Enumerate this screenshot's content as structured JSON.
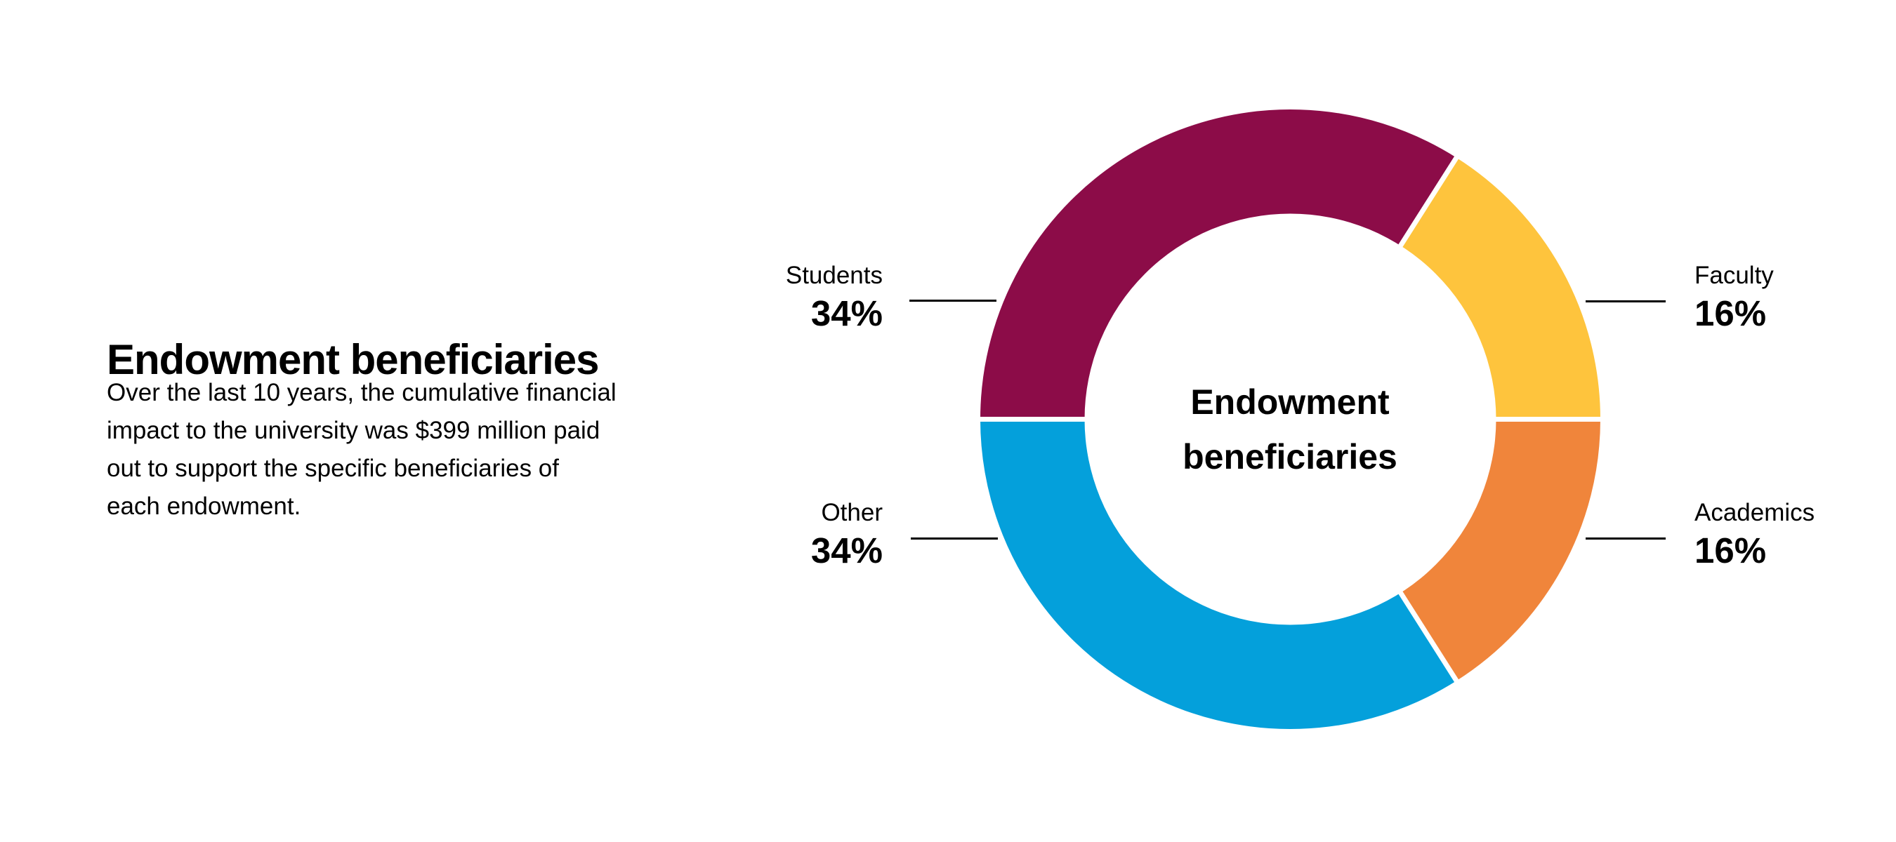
{
  "page": {
    "background_color": "#FFFFFF",
    "text_color": "#000000"
  },
  "text_block": {
    "heading": "Endowment beneficiaries",
    "paragraph": "Over the last 10 years, the cumulative financial impact to the university was $399 million paid out to support the specific beneficiaries of each endowment.",
    "paragraph_lines": [
      "Over the last 10 years, the cumulative financial",
      "impact to the university was $399 million paid",
      "out to support the specific beneficiaries of",
      "each endowment."
    ]
  },
  "chart_data": {
    "type": "pie",
    "subtype": "donut",
    "title": "Endowment beneficiaries",
    "center_label": "Endowment beneficiaries",
    "start_angle_deg": 180,
    "direction": "clockwise",
    "separator_color": "#FFFFFF",
    "leader_line_color": "#000000",
    "segments": [
      {
        "label": "Students",
        "value": 34,
        "pct_label": "34%",
        "color": "#8C0C48",
        "label_side": "left"
      },
      {
        "label": "Faculty",
        "value": 16,
        "pct_label": "16%",
        "color": "#FEC43D",
        "label_side": "right"
      },
      {
        "label": "Academics",
        "value": 16,
        "pct_label": "16%",
        "color": "#F0853B",
        "label_side": "right"
      },
      {
        "label": "Other",
        "value": 34,
        "pct_label": "34%",
        "color": "#04A0DB",
        "label_side": "left"
      }
    ]
  }
}
